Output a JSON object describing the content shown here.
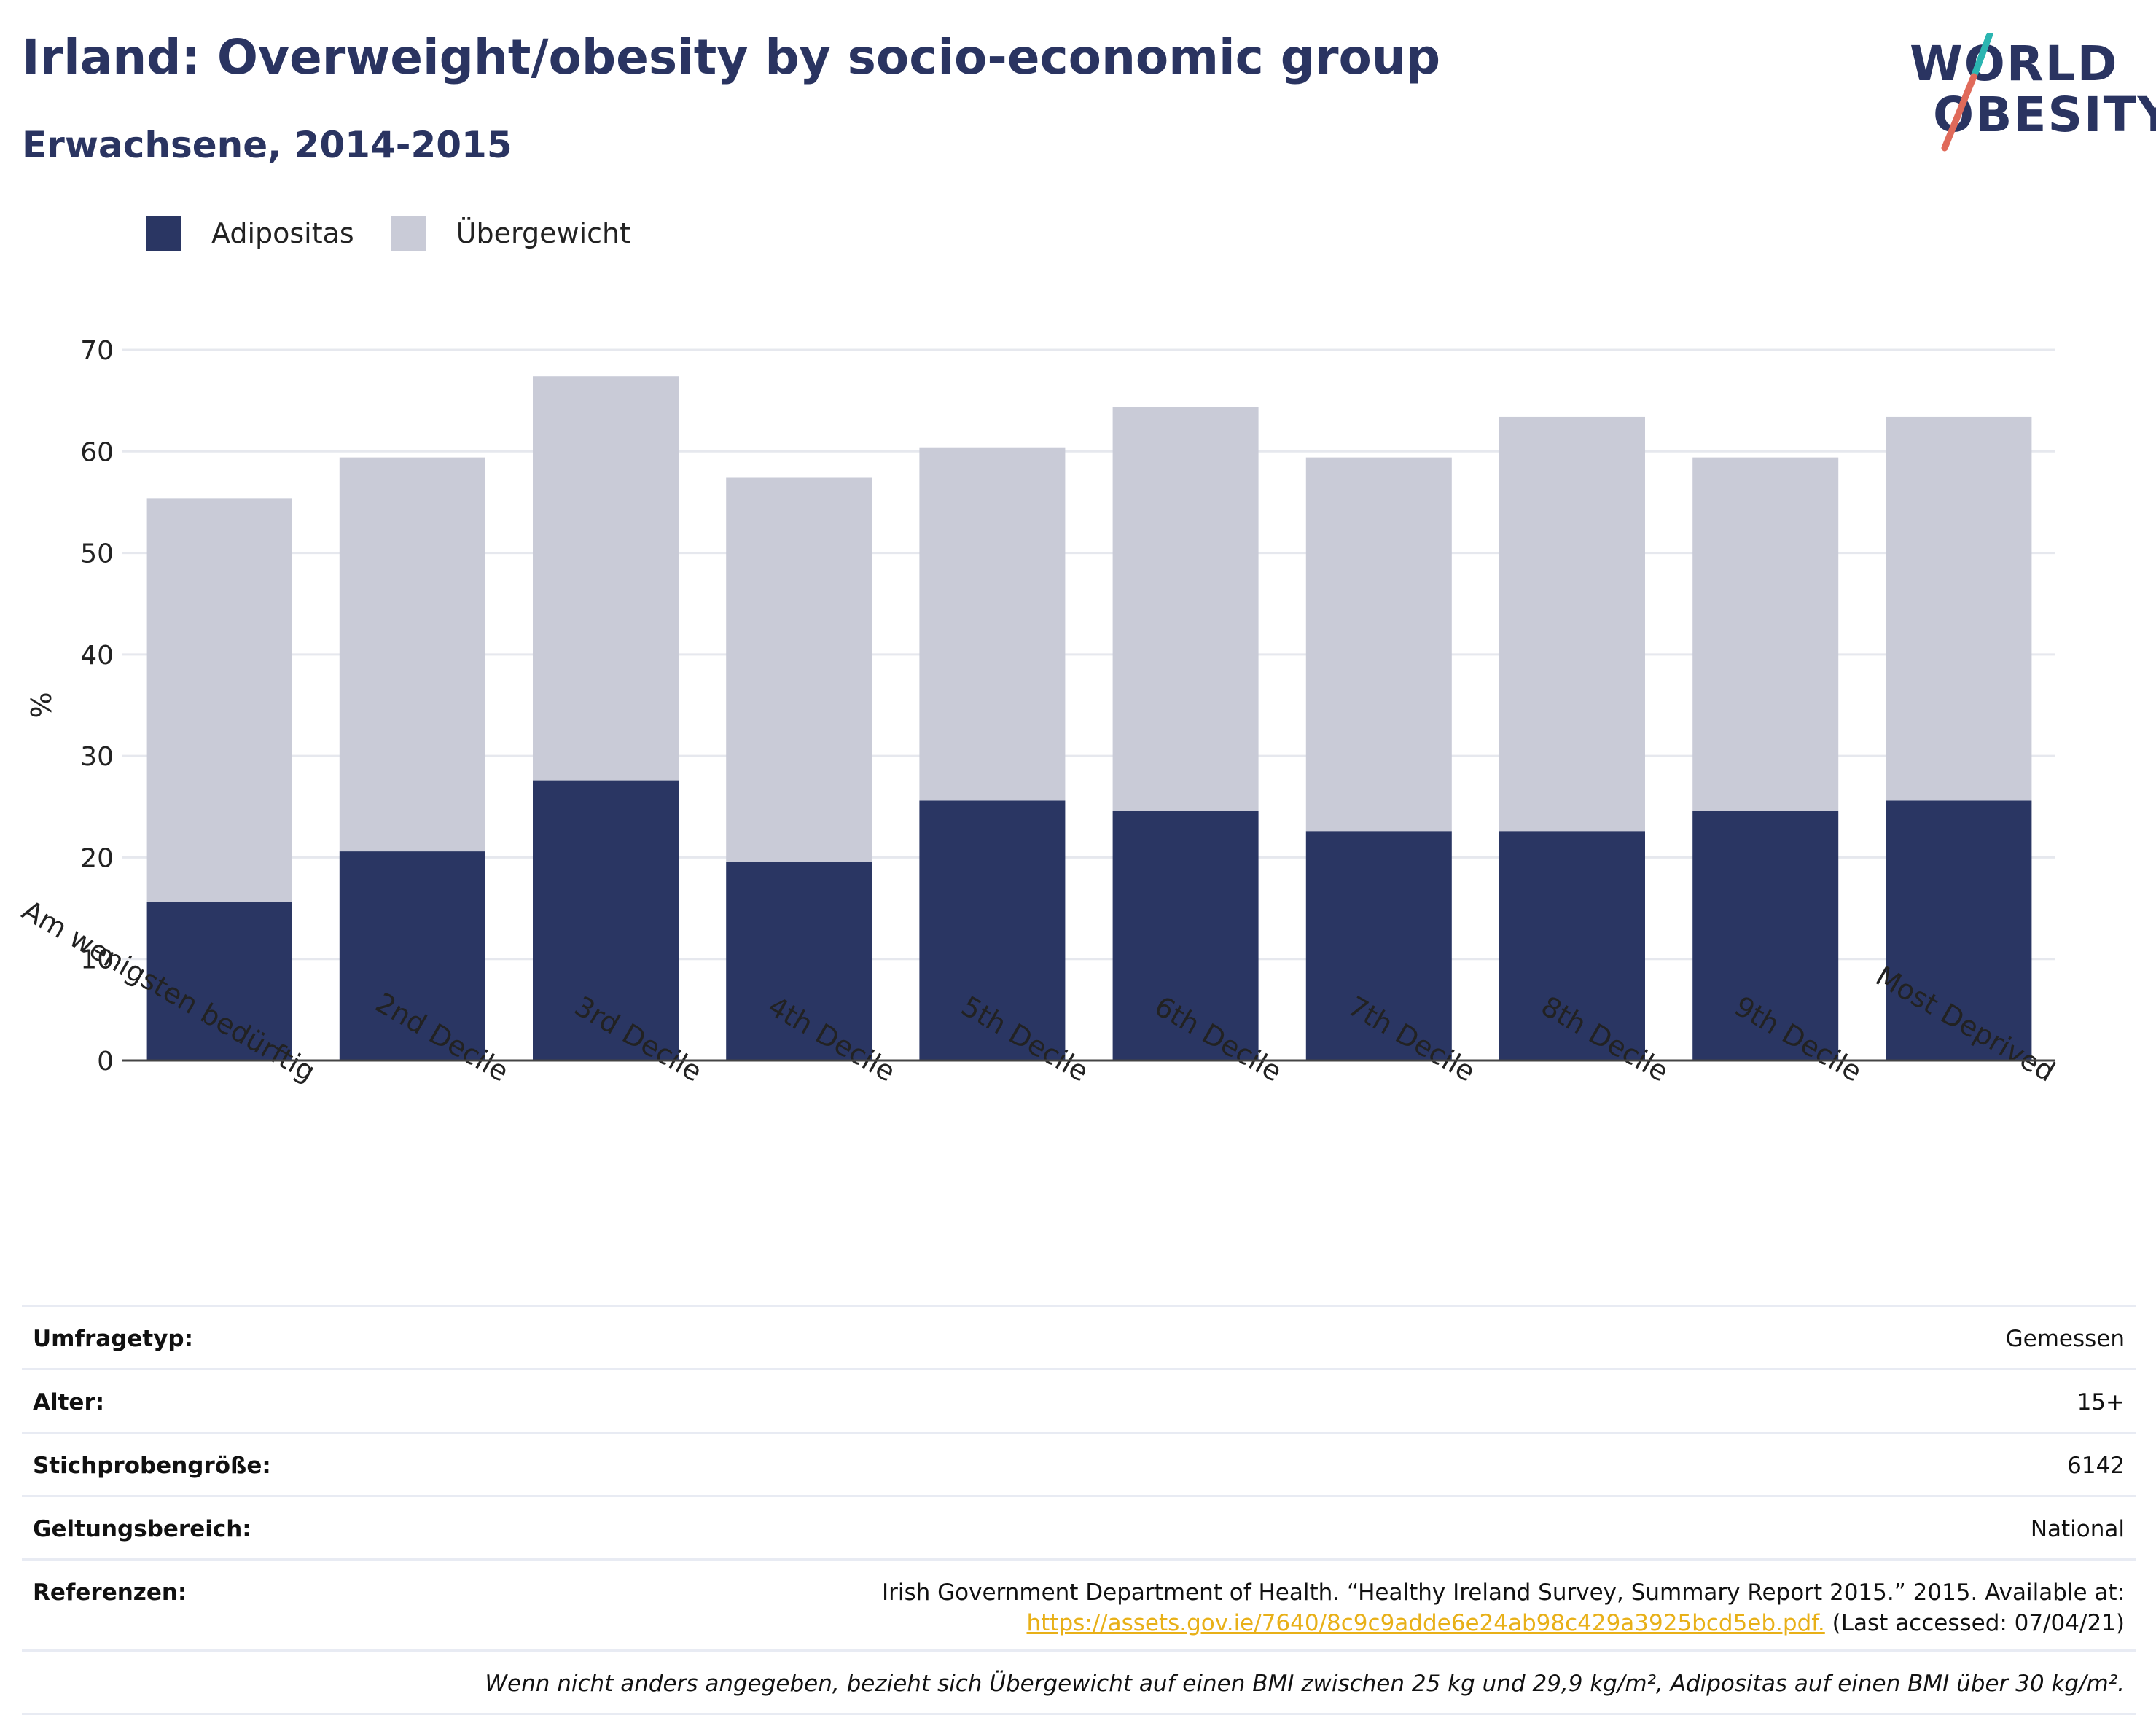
{
  "title": "Irland: Overweight/obesity by socio-economic group",
  "subtitle": "Erwachsene, 2014-2015",
  "logo": {
    "line1": "WORLD",
    "line2": "OBESITY"
  },
  "colors": {
    "obesity": "#2a3663",
    "overweight": "#c9cbd7",
    "accent_teal": "#2bb5b1",
    "accent_red": "#e06a5a",
    "link": "#e8b018"
  },
  "legend": [
    {
      "label": "Adipositas",
      "color": "#2a3663"
    },
    {
      "label": "Übergewicht",
      "color": "#c9cbd7"
    }
  ],
  "chart_data": {
    "type": "bar",
    "stacked": true,
    "categories": [
      "Am wenigsten bedürftig",
      "2nd Decile",
      "3rd Decile",
      "4th Decile",
      "5th Decile",
      "6th Decile",
      "7th Decile",
      "8th Decile",
      "9th Decile",
      "Most Deprived"
    ],
    "series": [
      {
        "name": "Adipositas",
        "values": [
          15.6,
          20.6,
          27.6,
          19.6,
          25.6,
          24.6,
          22.6,
          22.6,
          24.6,
          25.6
        ]
      },
      {
        "name": "Übergewicht",
        "values": [
          39.8,
          38.8,
          39.8,
          37.8,
          34.8,
          39.8,
          36.8,
          40.8,
          34.8,
          37.8
        ]
      }
    ],
    "ylabel": "%",
    "ylim": [
      0,
      70
    ],
    "yticks": [
      0,
      10,
      20,
      30,
      40,
      50,
      60,
      70
    ],
    "grid": true
  },
  "info": {
    "survey_type": {
      "label": "Umfragetyp:",
      "value": "Gemessen"
    },
    "age": {
      "label": "Alter:",
      "value": "15+"
    },
    "sample_size": {
      "label": "Stichprobengröße:",
      "value": "6142"
    },
    "scope": {
      "label": "Geltungsbereich:",
      "value": "National"
    },
    "references": {
      "label": "Referenzen:",
      "line1": "Irish Government Department of Health. “Healthy Ireland Survey, Summary Report 2015.” 2015. Available at:",
      "link": "https://assets.gov.ie/7640/8c9c9adde6e24ab98c429a3925bcd5eb.pdf.",
      "suffix": " (Last accessed: 07/04/21)"
    },
    "note": "Wenn nicht anders angegeben, bezieht sich Übergewicht auf einen BMI zwischen 25 kg und 29,9 kg/m², Adipositas auf einen BMI über 30 kg/m²."
  }
}
